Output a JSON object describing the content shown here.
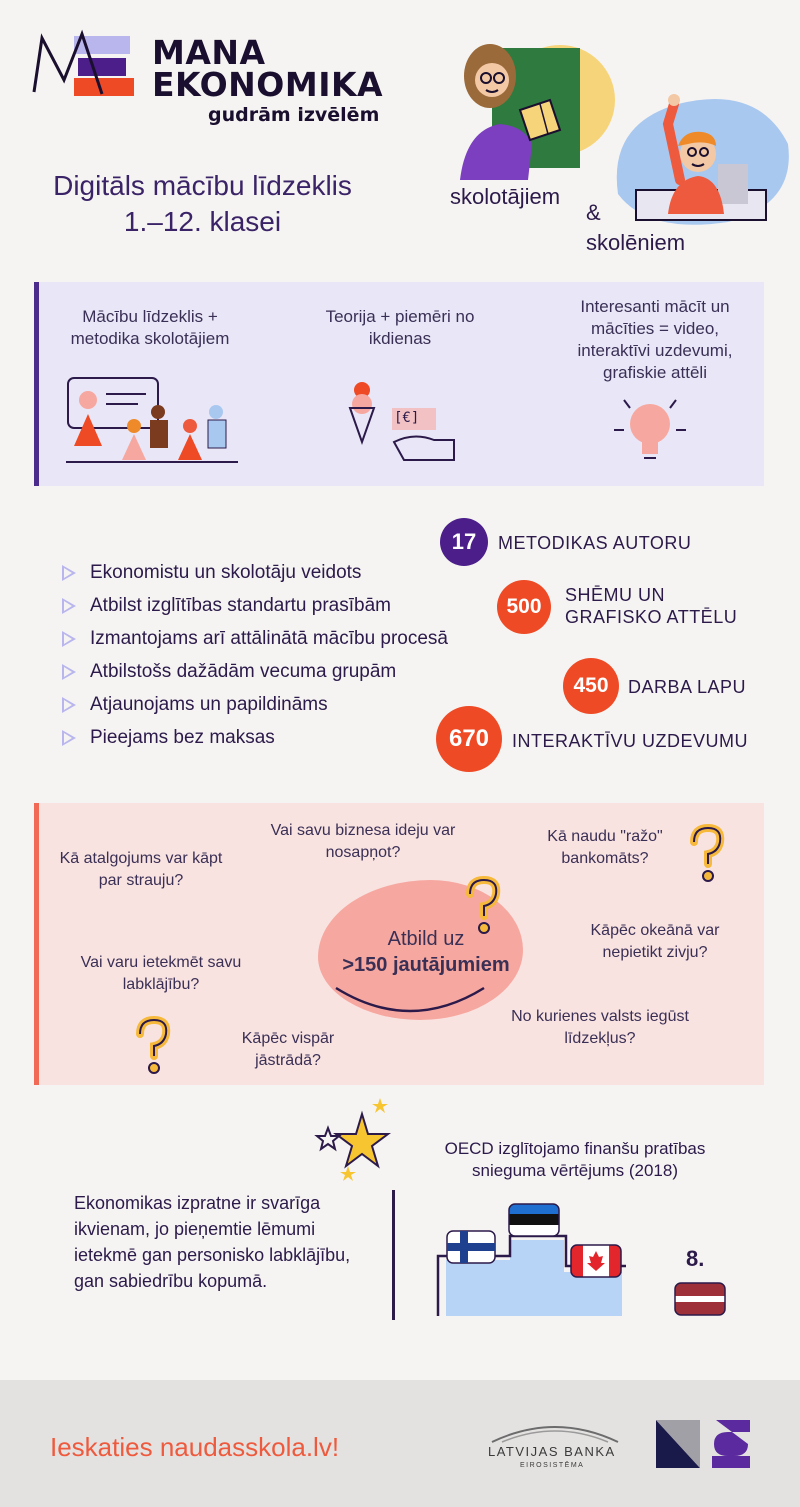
{
  "header": {
    "logo_line1": "MANA",
    "logo_line2": "EKONOMIKA",
    "logo_tagline": "gudrām izvēlēm",
    "headline_line1": "Digitāls mācību līdzeklis",
    "headline_line2": "1.–12. klasei",
    "audience_teachers": "skolotājiem",
    "audience_amp": "&",
    "audience_students": "skolēniem"
  },
  "features": [
    {
      "text": "Mācību līdzeklis + metodika skolotājiem"
    },
    {
      "text": "Teorija + piemēri no ikdienas"
    },
    {
      "text": "Interesanti mācīt un mācīties = video, interaktīvi uzdevumi, grafiskie attēli"
    }
  ],
  "features_money_glyph": "[€]",
  "bullets": [
    "Ekonomistu un skolotāju veidots",
    "Atbilst izglītības standartu prasībām",
    "Izmantojams arī attālinātā mācību procesā",
    "Atbilstošs dažādām vecuma grupām",
    "Atjaunojams un papildināms",
    "Pieejams bez maksas"
  ],
  "stats": [
    {
      "value": "17",
      "label": "METODIKAS AUTORU",
      "color": "#4b1e8a"
    },
    {
      "value": "500",
      "label_line1": "SHĒMU UN",
      "label_line2": "GRAFISKO ATTĒLU",
      "color": "#ee4a26"
    },
    {
      "value": "450",
      "label": "DARBA LAPU",
      "color": "#ee4a26"
    },
    {
      "value": "670",
      "label": "INTERAKTĪVU UZDEVUMU",
      "color": "#ee4a26"
    }
  ],
  "questions": {
    "q1": "Kā atalgojums var kāpt par strauju?",
    "q2": "Vai savu biznesa ideju var nosapņot?",
    "q3": "Kā naudu \"ražo\" bankomāts?",
    "q4": "Kāpēc okeānā var nepietikt zivju?",
    "q5": "No kurienes valsts iegūst līdzekļus?",
    "q6": "Kāpēc vispār jāstrādā?",
    "q7": "Vai varu ietekmēt savu labklājību?",
    "center_line1": "Atbild uz",
    "center_line2": ">150 jautājumiem"
  },
  "bottom": {
    "body": "Ekonomikas izpratne ir svarīga ikvienam, jo pieņemtie lēmumi ietekmē gan personisko labklājību, gan sabiedrību kopumā.",
    "oecd_title": "OECD izglītojamo finanšu pratības snieguma vērtējums (2018)",
    "latvia_rank": "8."
  },
  "footer": {
    "cta": "Ieskaties naudasskola.lv!",
    "bank_name": "LATVIJAS BANKA",
    "bank_sub": "EIROSISTĒMA"
  },
  "colors": {
    "purple": "#4b1e8a",
    "orange": "#ee4a26",
    "lavender_panel": "#e9e7f7",
    "pink_panel": "#f9e3e1"
  }
}
